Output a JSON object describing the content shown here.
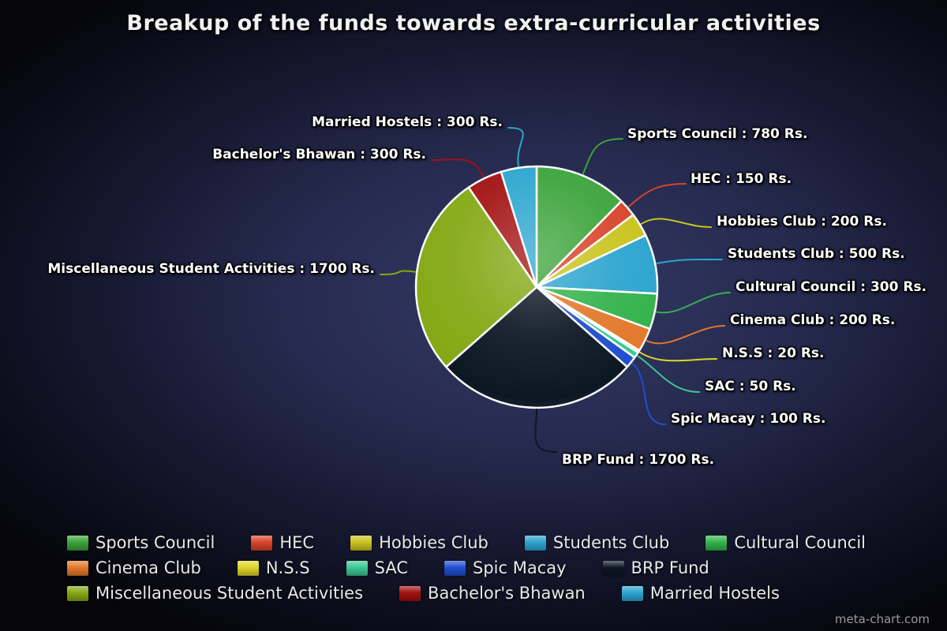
{
  "watermark": "meta-chart.com",
  "chart_data": {
    "type": "pie",
    "title": "Breakup of the funds towards extra-curricular activities",
    "unit": "Rs.",
    "label_format": "{name} : {value} Rs.",
    "legend_position": "bottom",
    "start_angle_deg": 0,
    "direction": "clockwise",
    "categories": [
      "Sports Council",
      "HEC",
      "Hobbies Club",
      "Students Club",
      "Cultural Council",
      "Cinema Club",
      "N.S.S",
      "SAC",
      "Spic Macay",
      "BRP Fund",
      "Miscellaneous Student Activities",
      "Bachelor's Bhawan",
      "Married Hostels"
    ],
    "values": [
      780,
      150,
      200,
      500,
      300,
      200,
      20,
      50,
      100,
      1700,
      1700,
      300,
      300
    ],
    "colors": [
      "#3ba33a",
      "#d8432a",
      "#c9c31d",
      "#2ba4cf",
      "#33b24c",
      "#e2782b",
      "#ded32a",
      "#3cc794",
      "#1f4ecf",
      "#0c1724",
      "#84a814",
      "#a31111",
      "#2ba6cf"
    ]
  }
}
